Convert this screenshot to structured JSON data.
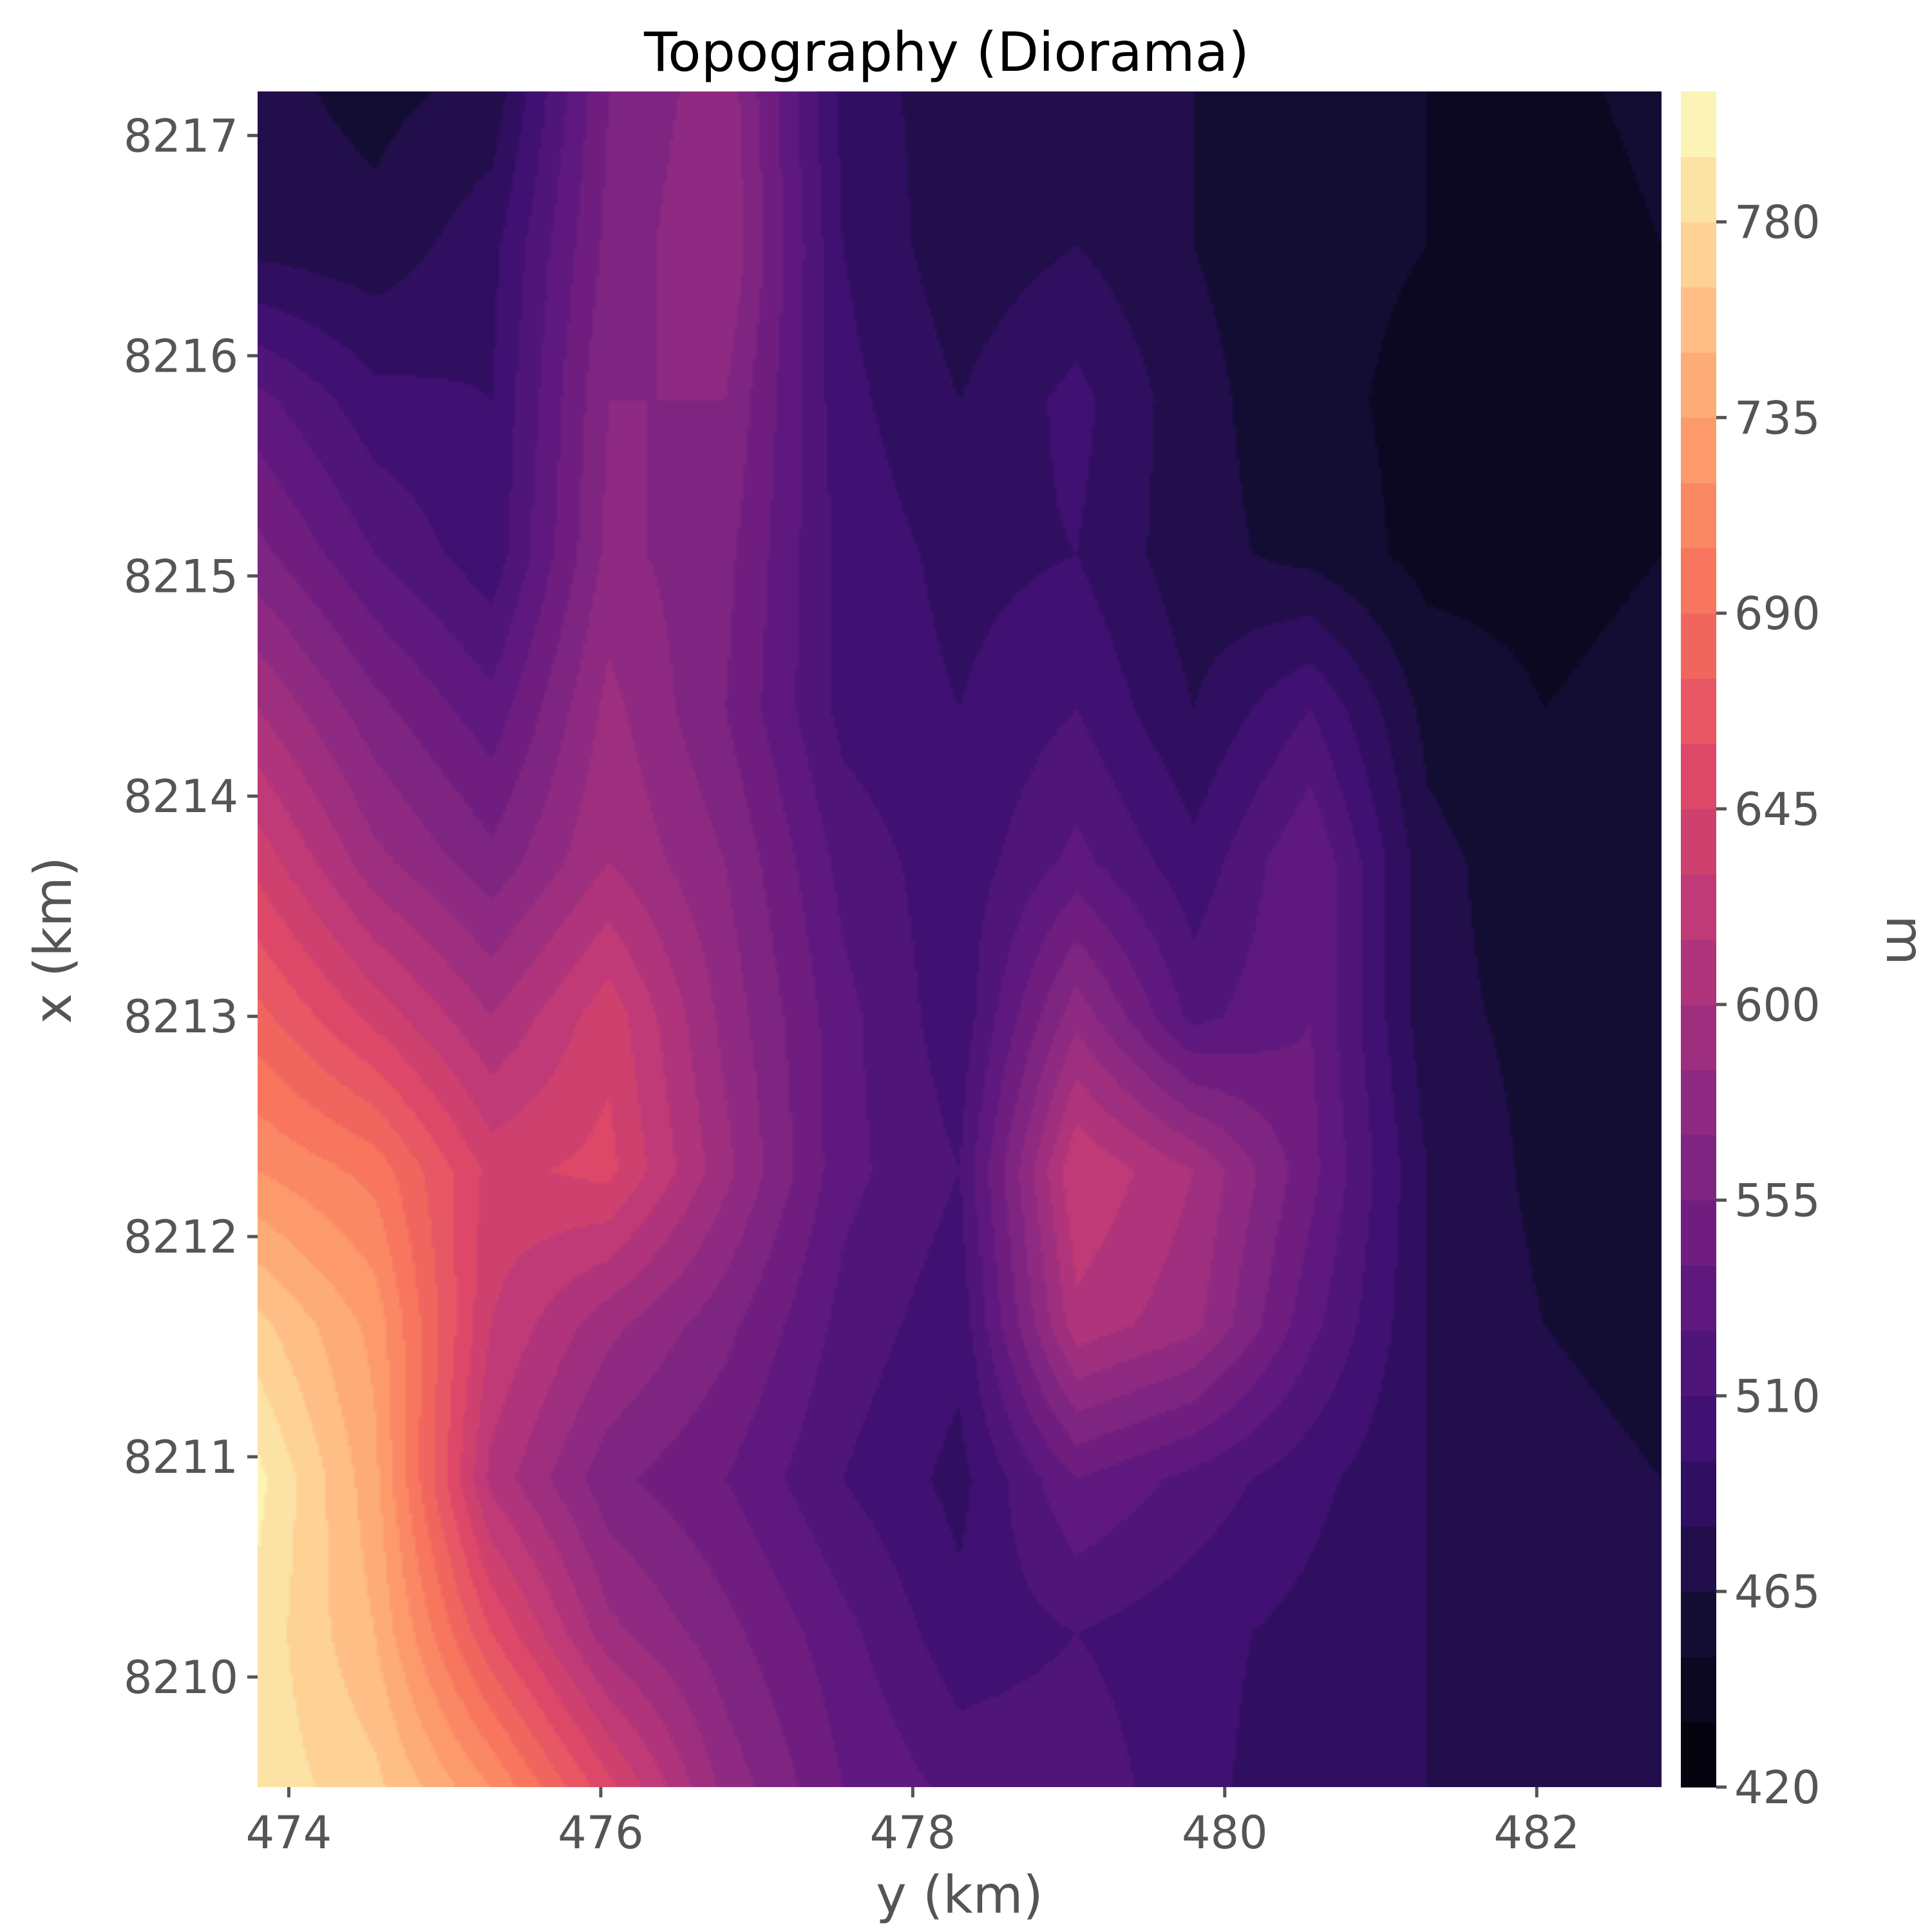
{
  "chart_data": {
    "type": "heatmap",
    "subtype": "filled-contour",
    "title": "Topography (Diorama)",
    "xlabel": "y (km)",
    "ylabel": "x (km)",
    "xlim": [
      473.8,
      482.8
    ],
    "ylim": [
      8209.5,
      8217.2
    ],
    "xticks": [
      474,
      476,
      478,
      480,
      482
    ],
    "yticks": [
      8210,
      8211,
      8212,
      8213,
      8214,
      8215,
      8216,
      8217
    ],
    "colormap": "magma",
    "colorbar": {
      "label": "m",
      "range": [
        420,
        810
      ],
      "levels_step": 15,
      "ticks": [
        420,
        465,
        510,
        555,
        600,
        645,
        690,
        735,
        780
      ]
    },
    "grid_y": [
      473.8,
      474.55,
      475.3,
      476.05,
      476.8,
      477.55,
      478.3,
      479.05,
      479.8,
      480.55,
      481.3,
      482.05,
      482.8
    ],
    "grid_x": [
      8217.2,
      8216.5,
      8215.8,
      8215.1,
      8214.4,
      8213.7,
      8213.0,
      8212.3,
      8211.6,
      8210.9,
      8210.2,
      8209.5
    ],
    "elevation_m": [
      [
        470,
        460,
        470,
        555,
        580,
        490,
        470,
        470,
        465,
        460,
        450,
        445,
        455
      ],
      [
        475,
        470,
        490,
        560,
        585,
        495,
        470,
        480,
        465,
        455,
        450,
        440,
        450
      ],
      [
        530,
        500,
        495,
        570,
        570,
        500,
        480,
        500,
        470,
        455,
        445,
        440,
        450
      ],
      [
        560,
        525,
        500,
        575,
        560,
        505,
        490,
        495,
        470,
        460,
        445,
        445,
        450
      ],
      [
        600,
        560,
        530,
        590,
        555,
        505,
        495,
        510,
        480,
        510,
        460,
        450,
        455
      ],
      [
        640,
        590,
        560,
        600,
        570,
        520,
        500,
        530,
        500,
        540,
        470,
        455,
        455
      ],
      [
        680,
        640,
        600,
        640,
        580,
        530,
        500,
        580,
        520,
        540,
        470,
        460,
        455
      ],
      [
        720,
        700,
        640,
        650,
        590,
        530,
        510,
        630,
        600,
        545,
        480,
        460,
        455
      ],
      [
        770,
        730,
        630,
        590,
        560,
        520,
        500,
        610,
        590,
        530,
        480,
        465,
        460
      ],
      [
        800,
        740,
        610,
        560,
        540,
        510,
        490,
        540,
        520,
        500,
        480,
        470,
        465
      ],
      [
        790,
        750,
        660,
        590,
        560,
        530,
        500,
        510,
        500,
        490,
        480,
        470,
        470
      ],
      [
        790,
        770,
        720,
        650,
        580,
        540,
        520,
        520,
        500,
        485,
        480,
        480,
        475
      ]
    ]
  }
}
